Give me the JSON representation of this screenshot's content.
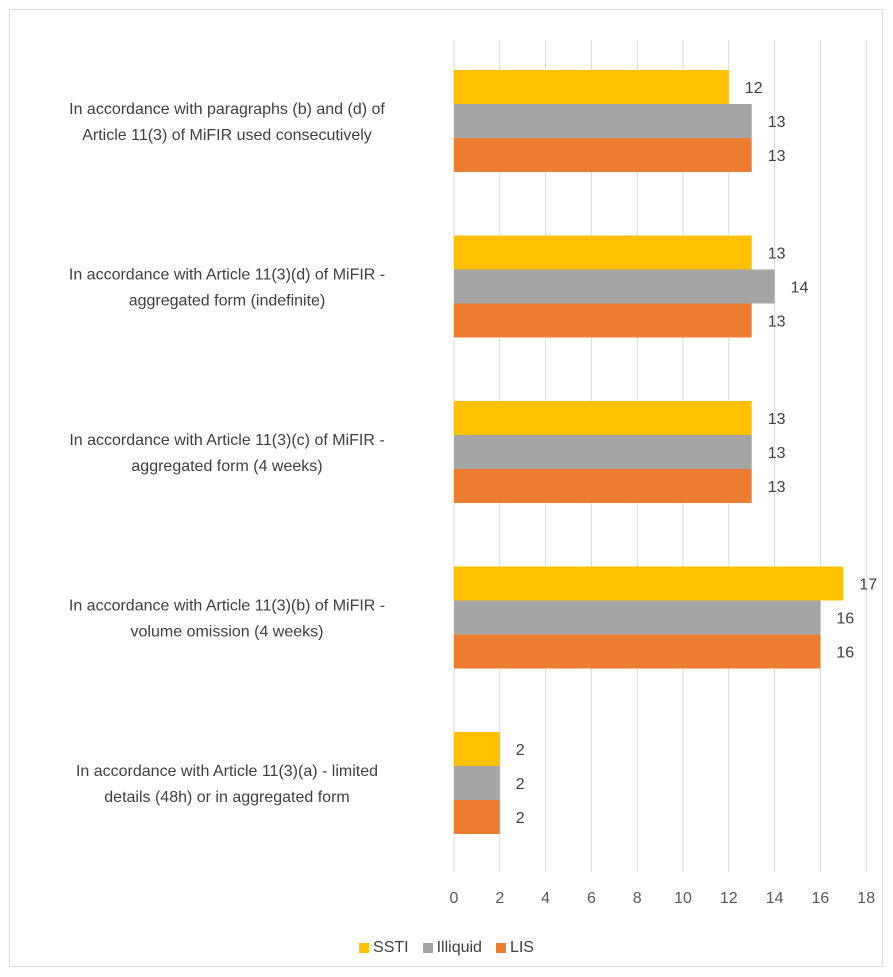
{
  "chart_data": {
    "type": "bar",
    "orientation": "horizontal",
    "categories": [
      [
        "In accordance with paragraphs (b) and (d) of",
        "Article 11(3) of MiFIR used consecutively"
      ],
      [
        "In accordance with Article 11(3)(d) of MiFIR -",
        "aggregated form (indefinite)"
      ],
      [
        "In accordance with Article 11(3)(c) of MiFIR -",
        "aggregated form (4 weeks)"
      ],
      [
        "In accordance with Article 11(3)(b) of MiFIR -",
        "volume omission (4 weeks)"
      ],
      [
        "In accordance with Article 11(3)(a) - limited",
        "details (48h) or in aggregated form"
      ]
    ],
    "series": [
      {
        "name": "SSTI",
        "color": "#FFC000",
        "values": [
          12,
          13,
          13,
          17,
          2
        ]
      },
      {
        "name": "Illiquid",
        "color": "#A5A5A5",
        "values": [
          13,
          14,
          13,
          16,
          2
        ]
      },
      {
        "name": "LIS",
        "color": "#ED7D31",
        "values": [
          13,
          13,
          13,
          16,
          2
        ]
      }
    ],
    "xlim": [
      0,
      18
    ],
    "xticks": [
      "0",
      "2",
      "4",
      "6",
      "8",
      "10",
      "12",
      "14",
      "16",
      "18"
    ],
    "grid": true,
    "legend_position": "bottom",
    "data_labels": true
  }
}
